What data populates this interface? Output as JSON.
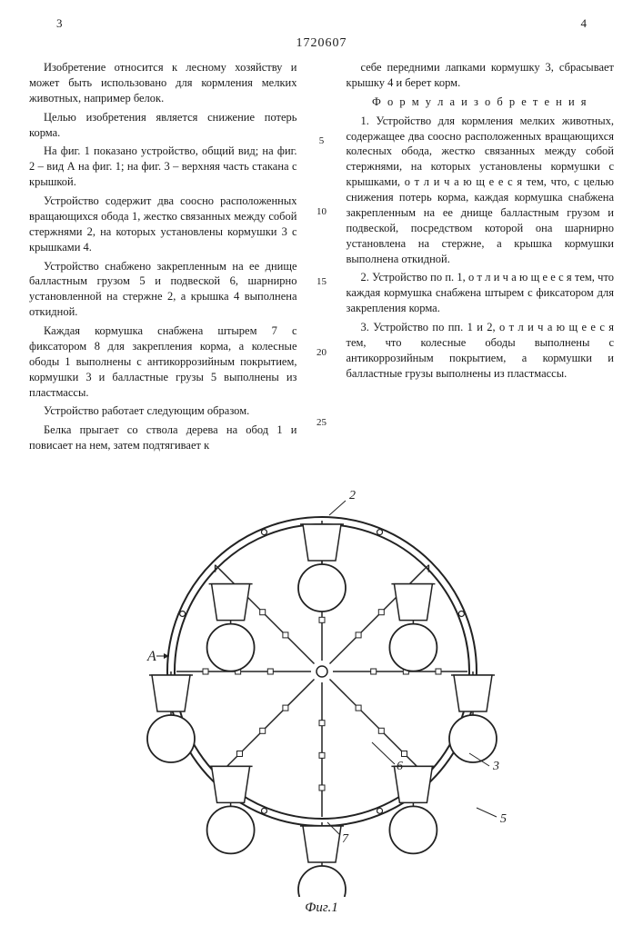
{
  "header": {
    "pg_left": "3",
    "pg_right": "4",
    "docnum": "1720607"
  },
  "left_col": {
    "p1": "Изобретение относится к лесному хозяйству и может быть использовано для кормления мелких животных, например белок.",
    "p2": "Целью изобретения является снижение потерь корма.",
    "p3": "На фиг. 1 показано устройство, общий вид; на фиг. 2 – вид А на фиг. 1; на фиг. 3 – верхняя часть стакана с крышкой.",
    "p4": "Устройство содержит два соосно расположенных вращающихся обода 1, жестко связанных между собой стержнями 2, на которых установлены кормушки 3 с крышками 4.",
    "p5": "Устройство снабжено закрепленным на ее днище балластным грузом 5 и подвеской 6, шарнирно установленной на стержне 2, а крышка 4 выполнена откидной.",
    "p6": "Каждая кормушка снабжена штырем 7 с фиксатором 8 для закрепления корма, а колесные ободы 1 выполнены с антикоррозийным покрытием, кормушки 3 и балластные грузы 5 выполнены из пластмассы.",
    "p7": "Устройство работает следующим образом.",
    "p8": "Белка прыгает со ствола дерева на обод 1 и повисает на нем, затем подтягивает к"
  },
  "right_col": {
    "p1": "себе передними лапками кормушку 3, сбрасывает крышку 4 и берет корм.",
    "ftitle": "Ф о р м у л а   и з о б р е т е н и я",
    "c1": "1. Устройство для кормления мелких животных, содержащее два соосно расположенных вращающихся колесных обода, жестко связанных между собой стержнями, на которых установлены кормушки с крышками, о т л и ч а ю щ е е с я  тем, что, с целью снижения потерь корма, каждая кормушка снабжена закрепленным на ее днище балластным грузом и подвеской, посредством которой она шарнирно установлена на стержне, а крышка кормушки выполнена откидной.",
    "c2": "2. Устройство по п. 1, о т л и ч а ю щ е е с я  тем, что каждая кормушка снабжена штырем с фиксатором для закрепления корма.",
    "c3": "3. Устройство по пп. 1 и 2, о т л и ч а ю щ е е с я  тем, что колесные ободы выполнены с антикоррозийным покрытием, а кормушки и балластные грузы выполнены из пластмассы."
  },
  "gutter": {
    "n5": "5",
    "n10": "10",
    "n15": "15",
    "n20": "20",
    "n25": "25"
  },
  "figure": {
    "label": "Фиг.1",
    "stroke": "#222222",
    "fill": "#ffffff",
    "outer_r": 170,
    "inner_gap": 8,
    "n_feeders": 8,
    "cup_w": 42,
    "cup_h": 40,
    "ball_r": 26,
    "label_A": "А",
    "label_2": "2",
    "label_3": "3",
    "label_5": "5",
    "label_6": "6",
    "label_7": "7"
  }
}
